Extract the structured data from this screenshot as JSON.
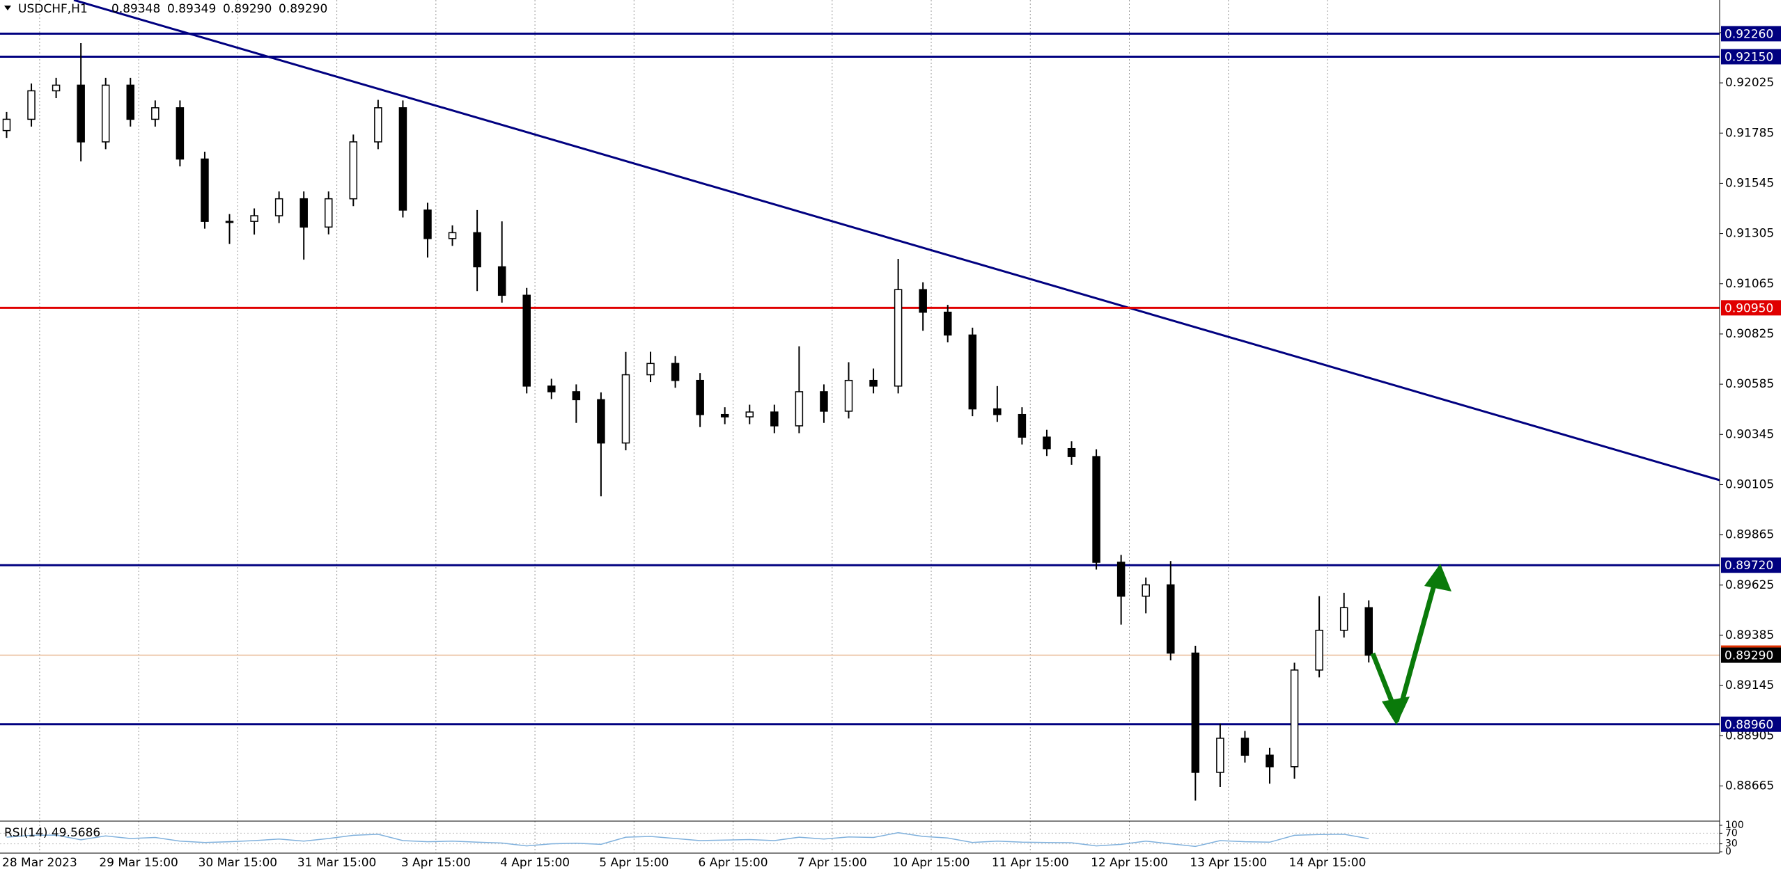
{
  "chart_data": {
    "type": "candlestick",
    "title": "USDCHF,H1",
    "header_values": [
      "0.89348",
      "0.89349",
      "0.89290",
      "0.89290"
    ],
    "bull_color": "#ffffff",
    "bear_color": "#000000",
    "outline_color": "#000000",
    "grid": "x",
    "x": [
      -8,
      -2,
      4,
      10,
      16,
      22,
      28,
      34,
      40,
      46,
      52,
      58,
      64,
      70,
      76,
      82,
      88,
      94,
      100,
      106,
      112,
      118,
      124,
      130,
      136,
      142,
      148,
      154,
      160,
      166,
      172,
      178,
      184,
      190,
      196,
      202,
      208,
      214,
      220,
      226,
      232,
      238,
      244,
      250,
      256,
      262,
      268,
      274,
      280,
      286,
      292,
      298,
      304,
      310,
      316,
      322
    ],
    "open": [
      0.91797,
      0.91851,
      0.91987,
      0.92014,
      0.91743,
      0.92014,
      0.91851,
      0.91906,
      0.91661,
      0.91363,
      0.91363,
      0.9139,
      0.91471,
      0.91336,
      0.91471,
      0.91743,
      0.91906,
      0.91417,
      0.91281,
      0.91309,
      0.91146,
      0.9101,
      0.90576,
      0.90549,
      0.90511,
      0.90304,
      0.9063,
      0.90684,
      0.90603,
      0.9044,
      0.90429,
      0.90452,
      0.90386,
      0.90549,
      0.90456,
      0.90603,
      0.90576,
      0.91037,
      0.90929,
      0.9082,
      0.90467,
      0.9044,
      0.90332,
      0.90277,
      0.90239,
      0.89734,
      0.89572,
      0.89626,
      0.893,
      0.8873,
      0.88893,
      0.88812,
      0.88757,
      0.89219,
      0.89409,
      0.89517
    ],
    "high": [
      0.91886,
      0.92022,
      0.92049,
      0.92215,
      0.92049,
      0.92049,
      0.91941,
      0.91941,
      0.91696,
      0.91398,
      0.91425,
      0.91506,
      0.91506,
      0.91506,
      0.91778,
      0.91944,
      0.91941,
      0.91452,
      0.91344,
      0.91417,
      0.91363,
      0.91045,
      0.90611,
      0.90584,
      0.90546,
      0.90739,
      0.9074,
      0.90719,
      0.90638,
      0.90475,
      0.90487,
      0.90487,
      0.90766,
      0.90584,
      0.9069,
      0.9066,
      0.91184,
      0.91072,
      0.90964,
      0.90855,
      0.90576,
      0.90475,
      0.90367,
      0.90312,
      0.90274,
      0.89769,
      0.89661,
      0.8974,
      0.89335,
      0.88963,
      0.88928,
      0.88847,
      0.89254,
      0.89572,
      0.89588,
      0.89552
    ],
    "low": [
      0.91762,
      0.91816,
      0.91952,
      0.9165,
      0.91708,
      0.91816,
      0.91816,
      0.91626,
      0.91328,
      0.91255,
      0.913,
      0.91355,
      0.9118,
      0.91301,
      0.91436,
      0.91708,
      0.91382,
      0.9119,
      0.91246,
      0.9103,
      0.90975,
      0.90541,
      0.90514,
      0.904,
      0.90049,
      0.90269,
      0.90595,
      0.90568,
      0.9038,
      0.90394,
      0.90394,
      0.90351,
      0.90351,
      0.904,
      0.90421,
      0.90541,
      0.90541,
      0.9084,
      0.90785,
      0.90432,
      0.90405,
      0.90297,
      0.90242,
      0.902,
      0.89699,
      0.89436,
      0.8949,
      0.89265,
      0.88595,
      0.8866,
      0.88777,
      0.88676,
      0.887,
      0.89184,
      0.89374,
      0.89255
    ],
    "close": [
      0.91851,
      0.91987,
      0.92014,
      0.91743,
      0.92014,
      0.91851,
      0.91906,
      0.91661,
      0.91363,
      0.91363,
      0.9139,
      0.91471,
      0.91336,
      0.91471,
      0.91743,
      0.91906,
      0.91417,
      0.91281,
      0.91309,
      0.91146,
      0.9101,
      0.90576,
      0.90549,
      0.90511,
      0.90304,
      0.9063,
      0.90684,
      0.90603,
      0.9044,
      0.90429,
      0.90452,
      0.90386,
      0.90549,
      0.90456,
      0.90603,
      0.90576,
      0.91037,
      0.90929,
      0.9082,
      0.90467,
      0.9044,
      0.90332,
      0.90277,
      0.90239,
      0.89734,
      0.89572,
      0.89626,
      0.893,
      0.8873,
      0.88893,
      0.88812,
      0.88757,
      0.89219,
      0.89409,
      0.89517,
      0.8929
    ],
    "xlim": [
      -9.6,
      407
    ],
    "xticks": [
      {
        "value": 0,
        "label": "28 Mar 2023"
      },
      {
        "value": 24,
        "label": "29 Mar 15:00"
      },
      {
        "value": 48,
        "label": "30 Mar 15:00"
      },
      {
        "value": 72,
        "label": "31 Mar 15:00"
      },
      {
        "value": 96,
        "label": "3 Apr 15:00"
      },
      {
        "value": 120,
        "label": "4 Apr 15:00"
      },
      {
        "value": 144,
        "label": "5 Apr 15:00"
      },
      {
        "value": 168,
        "label": "6 Apr 15:00"
      },
      {
        "value": 192,
        "label": "7 Apr 15:00"
      },
      {
        "value": 216,
        "label": "10 Apr 15:00"
      },
      {
        "value": 240,
        "label": "11 Apr 15:00"
      },
      {
        "value": 264,
        "label": "12 Apr 15:00"
      },
      {
        "value": 288,
        "label": "13 Apr 15:00"
      },
      {
        "value": 312,
        "label": "14 Apr 15:00"
      }
    ],
    "ylim": [
      0.88497,
      0.92421
    ],
    "yticks": [
      0.88665,
      0.88905,
      0.89145,
      0.89385,
      0.89625,
      0.89865,
      0.90105,
      0.90345,
      0.90585,
      0.90825,
      0.91065,
      0.91305,
      0.91545,
      0.91785,
      0.92025,
      0.92265
    ],
    "levels": [
      {
        "value": 0.9226,
        "label": "0.92260",
        "color": "#000080"
      },
      {
        "value": 0.9215,
        "label": "0.92150",
        "color": "#000080"
      },
      {
        "value": 0.9095,
        "label": "0.90950",
        "color": "#e00000"
      },
      {
        "value": 0.8972,
        "label": "0.89720",
        "color": "#000080"
      },
      {
        "value": 0.8896,
        "label": "0.88960",
        "color": "#000080"
      }
    ],
    "current_price": {
      "value": 0.8929,
      "label": "0.89290",
      "color": "#e8b894"
    },
    "rsi": {
      "label": "RSI(14) 49.5686",
      "color": "#7fb0dc",
      "ylim": [
        0,
        100
      ],
      "yticks": [
        0,
        30,
        70,
        100
      ],
      "values": [
        55,
        62,
        63,
        45,
        60,
        50,
        54,
        40,
        35,
        38,
        42,
        48,
        40,
        50,
        62,
        66,
        42,
        38,
        40,
        36,
        33,
        22,
        30,
        32,
        28,
        55,
        58,
        50,
        42,
        44,
        46,
        42,
        55,
        48,
        56,
        54,
        72,
        58,
        52,
        35,
        40,
        36,
        35,
        34,
        22,
        28,
        40,
        30,
        20,
        42,
        38,
        36,
        62,
        65,
        66,
        49.5686
      ]
    }
  }
}
